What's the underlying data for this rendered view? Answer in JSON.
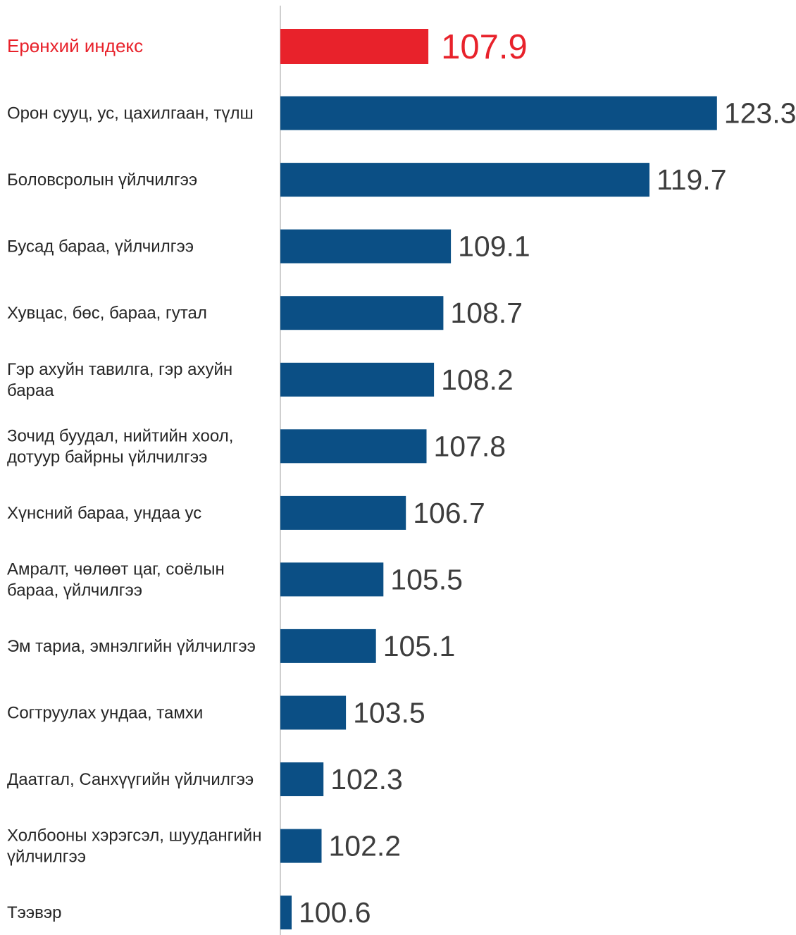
{
  "chart_data": {
    "type": "bar",
    "orientation": "horizontal",
    "baseline": 100,
    "categories": [
      "Ерөнхий индекс",
      "Орон сууц, ус, цахилгаан, түлш",
      "Боловсролын үйлчилгээ",
      "Бусад бараа, үйлчилгээ",
      "Хувцас, бөс, бараа, гутал",
      "Гэр ахуйн тавилга, гэр ахуйн бараа",
      "Зочид буудал, нийтийн хоол, дотуур байрны үйлчилгээ",
      "Хүнсний бараа, ундаа ус",
      "Амралт, чөлөөт цаг,  соёлын бараа, үйлчилгээ",
      "Эм тариа, эмнэлгийн үйлчилгээ",
      "Согтруулах ундаа, тамхи",
      "Даатгал, Санхүүгийн үйлчилгээ",
      "Холбооны хэрэгсэл, шуудангийн үйлчилгээ",
      "Тээвэр"
    ],
    "values": [
      107.9,
      123.3,
      119.7,
      109.1,
      108.7,
      108.2,
      107.8,
      106.7,
      105.5,
      105.1,
      103.5,
      102.3,
      102.2,
      100.6
    ],
    "value_labels": [
      "107.9",
      "123.3",
      "119.7",
      "109.1",
      "108.7",
      "108.2",
      "107.8",
      "106.7",
      "105.5",
      "105.1",
      "103.5",
      "102.3",
      "102.2",
      "100.6"
    ],
    "label_lines": [
      [
        "Ерөнхий индекс"
      ],
      [
        "Орон сууц, ус, цахилгаан, түлш"
      ],
      [
        "Боловсролын үйлчилгээ"
      ],
      [
        "Бусад бараа, үйлчилгээ"
      ],
      [
        "Хувцас, бөс, бараа, гутал"
      ],
      [
        "Гэр ахуйн тавилга, гэр ахуйн",
        "бараа"
      ],
      [
        "Зочид буудал, нийтийн хоол,",
        "дотуур байрны үйлчилгээ"
      ],
      [
        "Хүнсний бараа, ундаа ус"
      ],
      [
        "Амралт, чөлөөт цаг,  соёлын",
        "бараа, үйлчилгээ"
      ],
      [
        "Эм тариа, эмнэлгийн үйлчилгээ"
      ],
      [
        "Согтруулах ундаа, тамхи"
      ],
      [
        "Даатгал, Санхүүгийн үйлчилгээ"
      ],
      [
        "Холбооны хэрэгсэл, шуудангийн",
        "үйлчилгээ"
      ],
      [
        "Тээвэр"
      ]
    ],
    "highlight_index": 0,
    "colors": {
      "highlight": "#e8222b",
      "bar": "#0b4f85",
      "axis": "#cfcfcf"
    },
    "grid": false,
    "legend": "none"
  }
}
